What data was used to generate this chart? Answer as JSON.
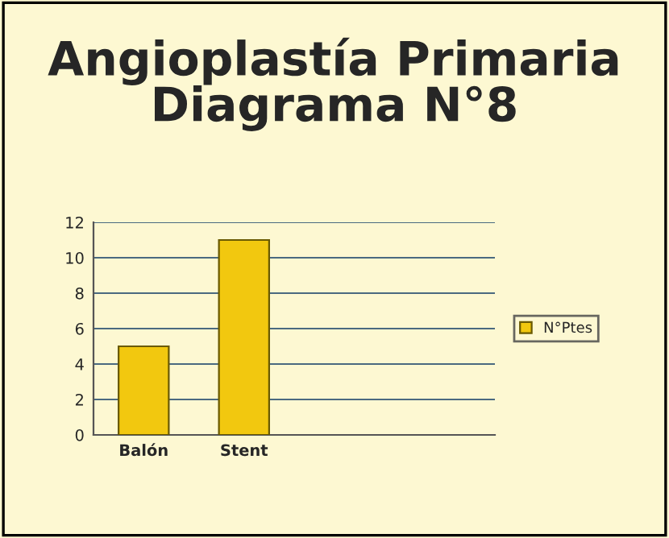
{
  "chart_data": {
    "type": "bar",
    "title": "Angioplastía Primaria\nDiagrama N°8",
    "categories": [
      "Balón",
      "Stent",
      null,
      null
    ],
    "series": [
      {
        "name": "N°Ptes",
        "color": "#f2c80f",
        "values": [
          5,
          11,
          null,
          null
        ]
      }
    ],
    "ylim": [
      0,
      12
    ],
    "yticks": [
      0,
      2,
      4,
      6,
      8,
      10,
      12
    ],
    "grid": "y",
    "legend": "right"
  }
}
